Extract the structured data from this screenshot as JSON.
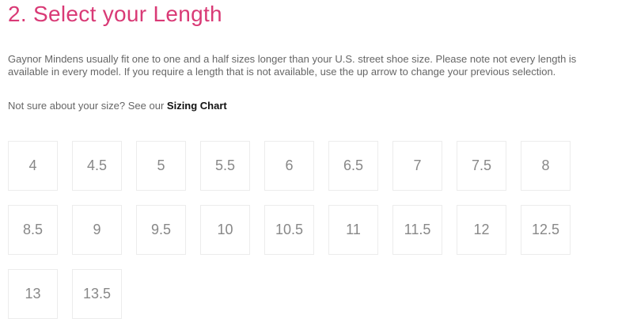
{
  "title": "2. Select your Length",
  "description": "Gaynor Mindens usually fit one to one and a half sizes longer than your U.S. street shoe size. Please note not every length is available in every model. If you require a length that is not available, use the up arrow to change your previous selection.",
  "sizing_prompt": "Not sure about your size? See our",
  "sizing_link": "Sizing Chart",
  "sizes": [
    "4",
    "4.5",
    "5",
    "5.5",
    "6",
    "6.5",
    "7",
    "7.5",
    "8",
    "8.5",
    "9",
    "9.5",
    "10",
    "10.5",
    "11",
    "11.5",
    "12",
    "12.5",
    "13",
    "13.5"
  ],
  "colors": {
    "accent": "#d93a76",
    "text": "#666666",
    "size_text": "#888888",
    "border": "#ececec"
  }
}
